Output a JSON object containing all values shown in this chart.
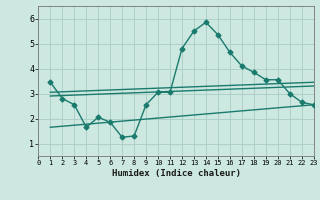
{
  "xlabel": "Humidex (Indice chaleur)",
  "ylabel": "",
  "bg_color": "#cce8e0",
  "grid_color": "#aed0c8",
  "line_color": "#1a7a6e",
  "xlim": [
    0,
    23
  ],
  "ylim": [
    0.5,
    6.5
  ],
  "yticks": [
    1,
    2,
    3,
    4,
    5,
    6
  ],
  "xticks": [
    0,
    1,
    2,
    3,
    4,
    5,
    6,
    7,
    8,
    9,
    10,
    11,
    12,
    13,
    14,
    15,
    16,
    17,
    18,
    19,
    20,
    21,
    22,
    23
  ],
  "curve1_x": [
    1,
    2,
    3,
    4,
    5,
    6,
    7,
    8,
    9,
    10,
    11,
    12,
    13,
    14,
    15,
    16,
    17,
    18,
    19,
    20,
    21,
    22,
    23
  ],
  "curve1_y": [
    3.45,
    2.8,
    2.55,
    1.65,
    2.05,
    1.85,
    1.25,
    1.3,
    2.55,
    3.05,
    3.05,
    4.8,
    5.5,
    5.85,
    5.35,
    4.65,
    4.1,
    3.85,
    3.55,
    3.55,
    3.0,
    2.65,
    2.55
  ],
  "line1_x": [
    1,
    23
  ],
  "line1_y": [
    3.05,
    3.45
  ],
  "line2_x": [
    1,
    23
  ],
  "line2_y": [
    2.9,
    3.3
  ],
  "line3_x": [
    1,
    23
  ],
  "line3_y": [
    1.65,
    2.55
  ],
  "marker": "D",
  "markersize": 2.5,
  "linewidth": 1.0
}
